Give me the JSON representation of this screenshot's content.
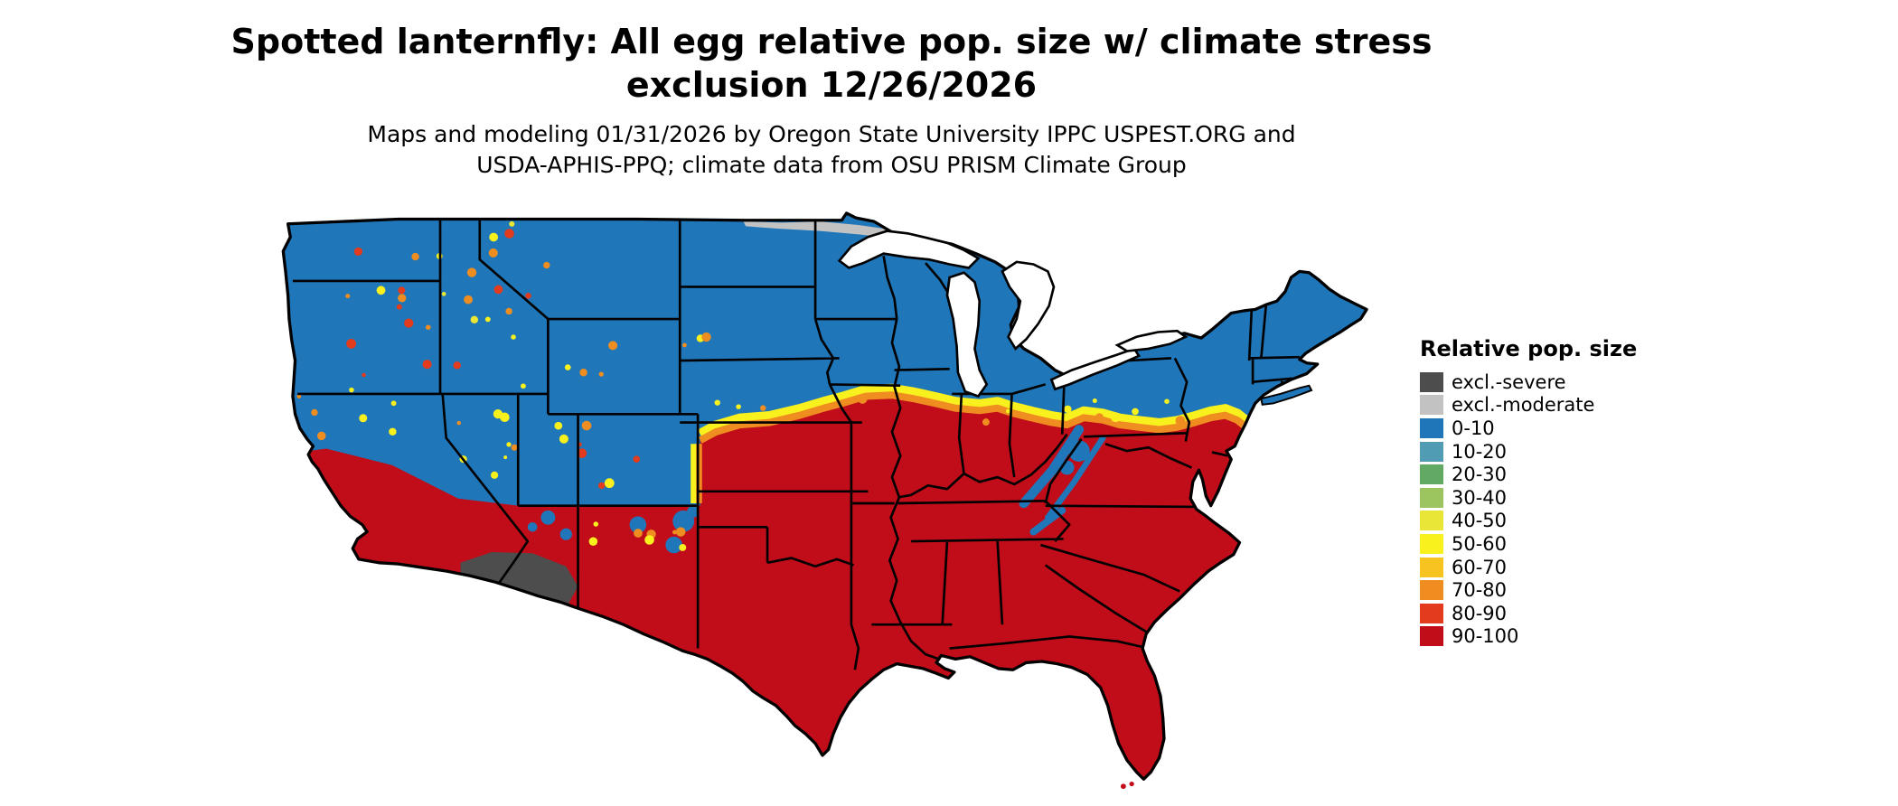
{
  "header": {
    "title_line1": "Spotted lanternfly: All egg relative pop. size w/ climate stress",
    "title_line2": "exclusion 12/26/2026",
    "subtitle_line1": "Maps and modeling 01/31/2026 by Oregon State University IPPC USPEST.ORG and",
    "subtitle_line2": "USDA-APHIS-PPQ; climate data from OSU PRISM Climate Group"
  },
  "legend": {
    "title": "Relative pop. size",
    "entries": [
      {
        "label": "excl.-severe",
        "color": "#4d4d4d"
      },
      {
        "label": "excl.-moderate",
        "color": "#c2c2c2"
      },
      {
        "label": "0-10",
        "color": "#1f76b8"
      },
      {
        "label": "10-20",
        "color": "#4f9cb4"
      },
      {
        "label": "20-30",
        "color": "#62aa63"
      },
      {
        "label": "30-40",
        "color": "#9cc45f"
      },
      {
        "label": "40-50",
        "color": "#e9e637"
      },
      {
        "label": "50-60",
        "color": "#f9f11e"
      },
      {
        "label": "60-70",
        "color": "#f6c320"
      },
      {
        "label": "70-80",
        "color": "#ef8d21"
      },
      {
        "label": "80-90",
        "color": "#e23b1e"
      },
      {
        "label": "90-100",
        "color": "#c00d19"
      }
    ]
  },
  "map": {
    "region": "Continental United States",
    "colors": {
      "water": "#ffffff",
      "border": "#000000"
    }
  }
}
